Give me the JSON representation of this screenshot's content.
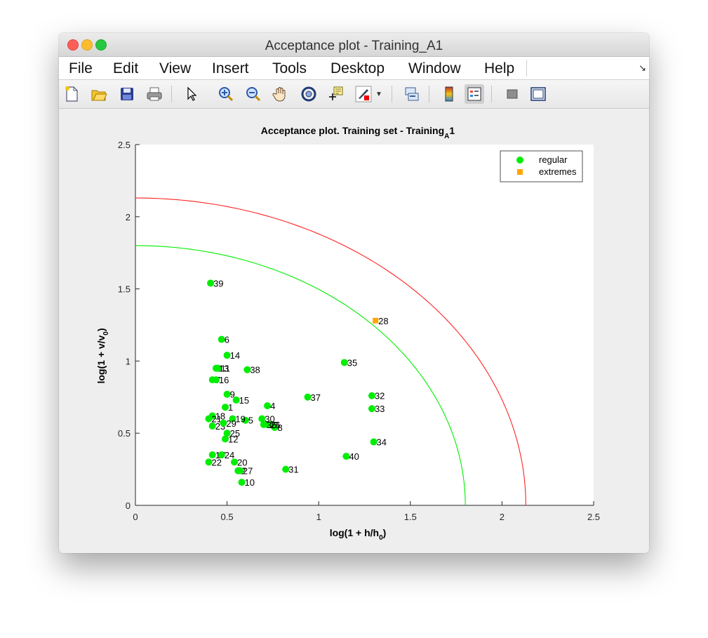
{
  "window": {
    "title": "Acceptance plot - Training_A1"
  },
  "menu": {
    "items": [
      "File",
      "Edit",
      "View",
      "Insert",
      "Tools",
      "Desktop",
      "Window",
      "Help"
    ],
    "corner_icon": "dock-arrow-icon"
  },
  "toolbar": {
    "buttons": [
      "new-figure-icon",
      "open-file-icon",
      "save-icon",
      "print-icon",
      "pointer-icon",
      "zoom-in-icon",
      "zoom-out-icon",
      "pan-hand-icon",
      "rotate-3d-icon",
      "data-cursor-icon",
      "brush-icon",
      "brush-dropdown-icon",
      "link-plot-icon",
      "colorbar-icon",
      "legend-icon",
      "hide-plot-tools-icon",
      "show-plot-tools-icon"
    ]
  },
  "chart_data": {
    "type": "scatter",
    "title_main": "Acceptance plot. Training set - Training",
    "title_sub": "A",
    "title_end": "1",
    "xlabel_main": "log(1 + h/h",
    "xlabel_sub": "0",
    "xlabel_end": ")",
    "ylabel_main": "log(1 + v/v",
    "ylabel_sub": "0",
    "ylabel_end": ")",
    "xlim": [
      0,
      2.5
    ],
    "ylim": [
      0,
      2.5
    ],
    "xticks": [
      "0",
      "0.5",
      "1",
      "1.5",
      "2",
      "2.5"
    ],
    "yticks": [
      "0",
      "0.5",
      "1",
      "1.5",
      "2",
      "2.5"
    ],
    "grid": false,
    "legend_position": "top-right",
    "series": [
      {
        "name": "regular",
        "color": "#00ee00",
        "marker": "circle",
        "points": [
          {
            "x": 0.49,
            "y": 0.68,
            "label": "1"
          },
          {
            "x": 0.56,
            "y": 0.24,
            "label": "2"
          },
          {
            "x": 0.74,
            "y": 0.56,
            "label": "3"
          },
          {
            "x": 0.72,
            "y": 0.69,
            "label": "4"
          },
          {
            "x": 0.6,
            "y": 0.59,
            "label": "5"
          },
          {
            "x": 0.47,
            "y": 1.15,
            "label": "6"
          },
          {
            "x": 0.42,
            "y": 0.87,
            "label": "7"
          },
          {
            "x": 0.76,
            "y": 0.54,
            "label": "8"
          },
          {
            "x": 0.5,
            "y": 0.77,
            "label": "9"
          },
          {
            "x": 0.58,
            "y": 0.16,
            "label": "10"
          },
          {
            "x": 0.45,
            "y": 0.95,
            "label": "11"
          },
          {
            "x": 0.49,
            "y": 0.46,
            "label": "12"
          },
          {
            "x": 0.44,
            "y": 0.95,
            "label": "13"
          },
          {
            "x": 0.5,
            "y": 1.04,
            "label": "14"
          },
          {
            "x": 0.55,
            "y": 0.73,
            "label": "15"
          },
          {
            "x": 0.44,
            "y": 0.87,
            "label": "16"
          },
          {
            "x": 0.42,
            "y": 0.35,
            "label": "17"
          },
          {
            "x": 0.42,
            "y": 0.62,
            "label": "18"
          },
          {
            "x": 0.53,
            "y": 0.6,
            "label": "19"
          },
          {
            "x": 0.54,
            "y": 0.3,
            "label": "20"
          },
          {
            "x": 0.4,
            "y": 0.6,
            "label": "21"
          },
          {
            "x": 0.4,
            "y": 0.3,
            "label": "22"
          },
          {
            "x": 0.42,
            "y": 0.55,
            "label": "23"
          },
          {
            "x": 0.47,
            "y": 0.35,
            "label": "24"
          },
          {
            "x": 0.5,
            "y": 0.5,
            "label": "25"
          },
          {
            "x": 0.72,
            "y": 0.56,
            "label": "26"
          },
          {
            "x": 0.57,
            "y": 0.24,
            "label": "27"
          },
          {
            "x": 0.48,
            "y": 0.57,
            "label": "29"
          },
          {
            "x": 0.69,
            "y": 0.6,
            "label": "30"
          },
          {
            "x": 0.82,
            "y": 0.25,
            "label": "31"
          },
          {
            "x": 1.29,
            "y": 0.76,
            "label": "32"
          },
          {
            "x": 1.29,
            "y": 0.67,
            "label": "33"
          },
          {
            "x": 1.3,
            "y": 0.44,
            "label": "34"
          },
          {
            "x": 1.14,
            "y": 0.99,
            "label": "35"
          },
          {
            "x": 0.7,
            "y": 0.56,
            "label": "36"
          },
          {
            "x": 0.94,
            "y": 0.75,
            "label": "37"
          },
          {
            "x": 0.61,
            "y": 0.94,
            "label": "38"
          },
          {
            "x": 0.41,
            "y": 1.54,
            "label": "39"
          },
          {
            "x": 1.15,
            "y": 0.34,
            "label": "40"
          }
        ]
      },
      {
        "name": "extremes",
        "color": "#ffa500",
        "marker": "square",
        "points": [
          {
            "x": 1.31,
            "y": 1.28,
            "label": "28"
          }
        ]
      }
    ],
    "limit_curves": [
      {
        "color": "#00ee00",
        "radius": 1.8
      },
      {
        "color": "#ff2222",
        "radius": 2.13
      }
    ]
  }
}
